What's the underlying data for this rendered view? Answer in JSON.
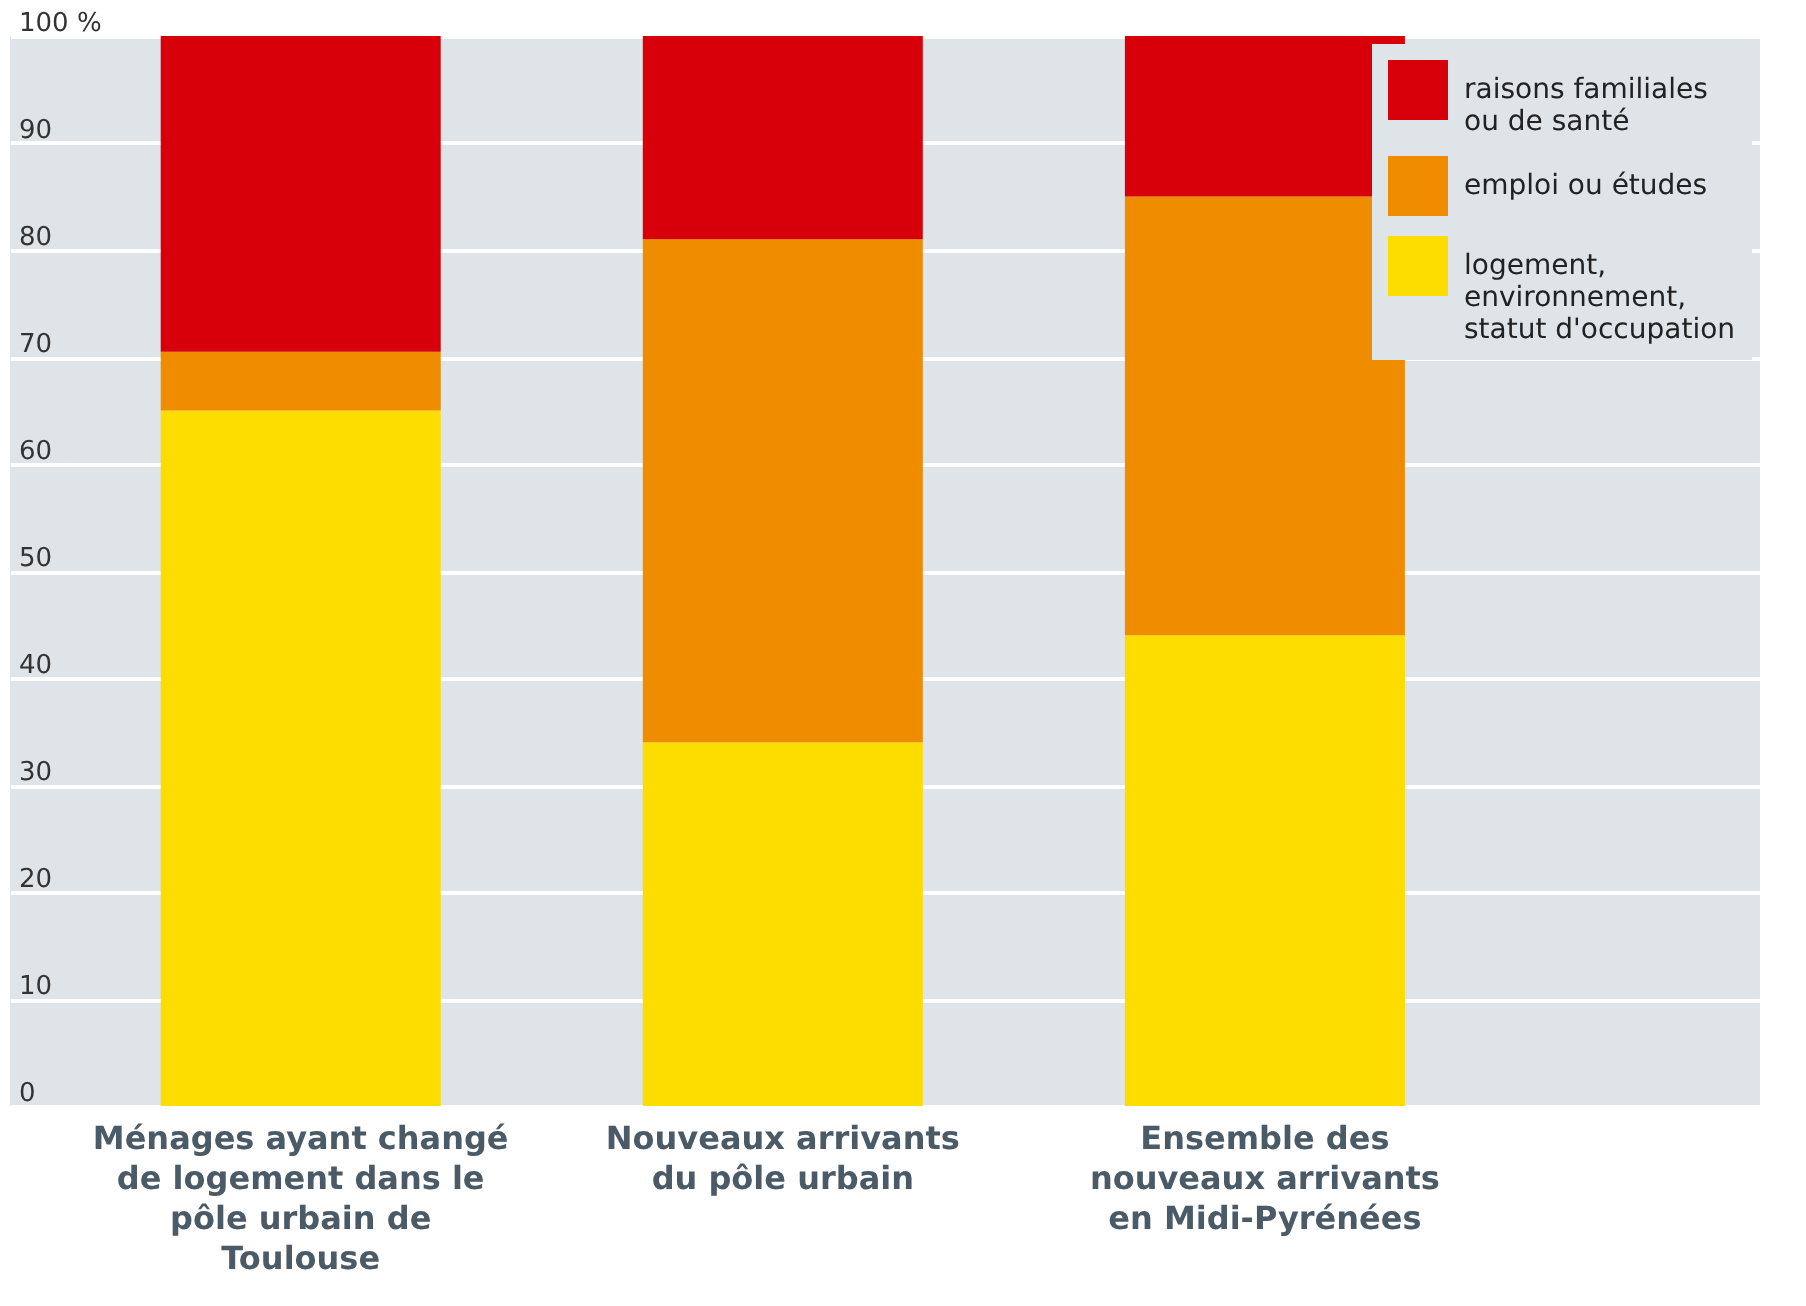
{
  "chart_data": {
    "type": "bar",
    "stacked": true,
    "categories": [
      "Ménages ayant changé de logement dans le pôle urbain de Toulouse",
      "Nouveaux arrivants du pôle urbain",
      "Ensemble des nouveaux arrivants en Midi-Pyrénées"
    ],
    "series": [
      {
        "name": "logement, environnement, statut d'occupation",
        "color": "#fddc00",
        "values": [
          65,
          34,
          44
        ]
      },
      {
        "name": "emploi ou études",
        "color": "#f08c00",
        "values": [
          5.5,
          47,
          41
        ]
      },
      {
        "name": "raisons familiales ou de santé",
        "color": "#d7000a",
        "values": [
          29.5,
          19,
          15
        ]
      }
    ],
    "ylim": [
      0,
      100
    ],
    "yticks": [
      0,
      10,
      20,
      30,
      40,
      50,
      60,
      70,
      80,
      90,
      {
        "value": 100,
        "label": "100 %"
      }
    ],
    "grid": "y",
    "legend": "top right"
  }
}
